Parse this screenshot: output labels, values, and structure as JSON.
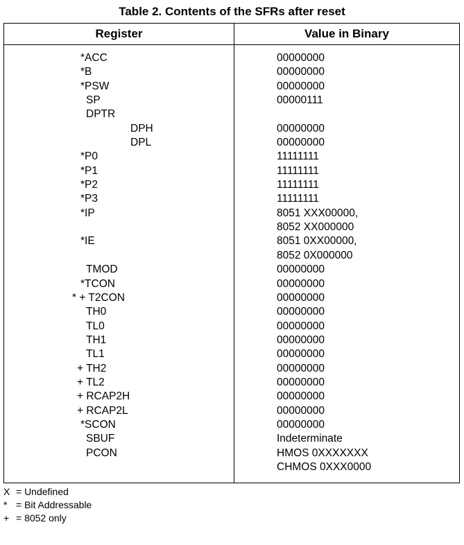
{
  "title": "Table 2. Contents of the SFRs after reset",
  "headers": {
    "register": "Register",
    "value": "Value in Binary"
  },
  "rows": [
    {
      "register": "*ACC",
      "value": "00000000"
    },
    {
      "register": "*B",
      "value": "00000000"
    },
    {
      "register": "*PSW",
      "value": "00000000"
    },
    {
      "register": "SP",
      "value": "00000111"
    },
    {
      "register": "DPTR",
      "value": ""
    },
    {
      "register": "DPH",
      "value": "00000000"
    },
    {
      "register": "DPL",
      "value": "00000000"
    },
    {
      "register": "*P0",
      "value": "11111111"
    },
    {
      "register": "*P1",
      "value": "11111111"
    },
    {
      "register": "*P2",
      "value": "11111111"
    },
    {
      "register": "*P3",
      "value": "11111111"
    },
    {
      "register": "*IP",
      "value": "8051 XXX00000,"
    },
    {
      "register": "",
      "value": "8052 XX000000"
    },
    {
      "register": "*IE",
      "value": "8051 0XX00000,"
    },
    {
      "register": "",
      "value": "8052 0X000000"
    },
    {
      "register": "TMOD",
      "value": "00000000"
    },
    {
      "register": "*TCON",
      "value": "00000000"
    },
    {
      "register": "* + T2CON",
      "value": "00000000"
    },
    {
      "register": "TH0",
      "value": "00000000"
    },
    {
      "register": "TL0",
      "value": "00000000"
    },
    {
      "register": "TH1",
      "value": "00000000"
    },
    {
      "register": "TL1",
      "value": "00000000"
    },
    {
      "register": "+ TH2",
      "value": "00000000"
    },
    {
      "register": "+ TL2",
      "value": "00000000"
    },
    {
      "register": "+ RCAP2H",
      "value": "00000000"
    },
    {
      "register": "+ RCAP2L",
      "value": "00000000"
    },
    {
      "register": "*SCON",
      "value": "00000000"
    },
    {
      "register": "SBUF",
      "value": "Indeterminate"
    },
    {
      "register": "PCON",
      "value": "HMOS 0XXXXXXX"
    },
    {
      "register": "",
      "value": "CHMOS 0XXX0000"
    }
  ],
  "legend": [
    {
      "symbol": "X",
      "text": "= Undefined"
    },
    {
      "symbol": "*",
      "text": "= Bit Addressable"
    },
    {
      "symbol": "+",
      "text": "= 8052 only"
    }
  ]
}
